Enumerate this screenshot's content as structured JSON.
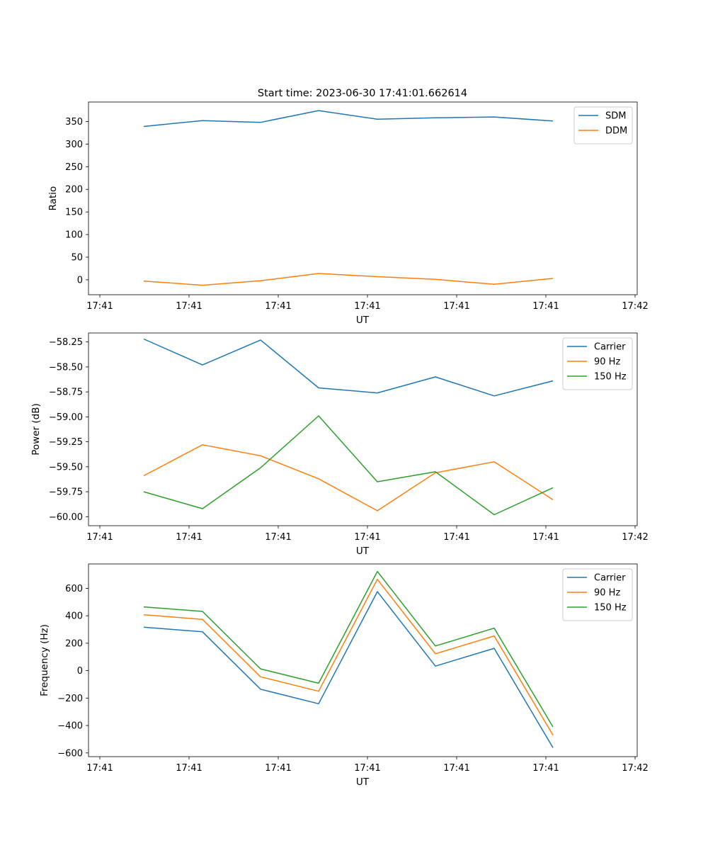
{
  "title": "Start time: 2023-06-30 17:41:01.662614",
  "chart_data": [
    {
      "type": "line",
      "title": "Start time: 2023-06-30 17:41:01.662614",
      "xlabel": "UT",
      "ylabel": "Ratio",
      "x_ticks": [
        "17:41",
        "17:41",
        "17:41",
        "17:41",
        "17:41",
        "17:41",
        "17:42"
      ],
      "y_ticks": [
        0,
        50,
        100,
        150,
        200,
        250,
        300,
        350
      ],
      "ylim": [
        -33,
        393
      ],
      "legend_position": "top-right",
      "grid": false,
      "series": [
        {
          "name": "SDM",
          "color": "#1f77b4",
          "values": [
            339,
            352,
            348,
            374,
            355,
            358,
            360,
            351
          ]
        },
        {
          "name": "DDM",
          "color": "#ff7f0e",
          "values": [
            -3,
            -12,
            -2,
            14,
            7,
            1,
            -10,
            3
          ]
        }
      ]
    },
    {
      "type": "line",
      "title": "",
      "xlabel": "UT",
      "ylabel": "Power (dB)",
      "x_ticks": [
        "17:41",
        "17:41",
        "17:41",
        "17:41",
        "17:41",
        "17:41",
        "17:42"
      ],
      "y_ticks": [
        -60.0,
        -59.75,
        -59.5,
        -59.25,
        -59.0,
        -58.75,
        -58.5,
        -58.25
      ],
      "y_tick_labels": [
        "−60.00",
        "−59.75",
        "−59.50",
        "−59.25",
        "−59.00",
        "−58.75",
        "−58.50",
        "−58.25"
      ],
      "ylim": [
        -60.09,
        -58.16
      ],
      "legend_position": "top-right",
      "grid": false,
      "series": [
        {
          "name": "Carrier",
          "color": "#1f77b4",
          "values": [
            -58.22,
            -58.48,
            -58.23,
            -58.71,
            -58.76,
            -58.6,
            -58.79,
            -58.64
          ]
        },
        {
          "name": "90 Hz",
          "color": "#ff7f0e",
          "values": [
            -59.59,
            -59.28,
            -59.39,
            -59.62,
            -59.94,
            -59.56,
            -59.45,
            -59.83
          ]
        },
        {
          "name": "150 Hz",
          "color": "#2ca02c",
          "values": [
            -59.75,
            -59.92,
            -59.51,
            -58.99,
            -59.65,
            -59.55,
            -59.98,
            -59.71
          ]
        }
      ]
    },
    {
      "type": "line",
      "title": "",
      "xlabel": "UT",
      "ylabel": "Frequency (Hz)",
      "x_ticks": [
        "17:41",
        "17:41",
        "17:41",
        "17:41",
        "17:41",
        "17:41",
        "17:42"
      ],
      "y_ticks": [
        -600,
        -400,
        -200,
        0,
        200,
        400,
        600
      ],
      "y_tick_labels": [
        "−600",
        "−400",
        "−200",
        "0",
        "200",
        "400",
        "600"
      ],
      "ylim": [
        -627,
        778
      ],
      "legend_position": "top-right",
      "grid": false,
      "series": [
        {
          "name": "Carrier",
          "color": "#1f77b4",
          "values": [
            317,
            283,
            -135,
            -241,
            576,
            33,
            163,
            -562
          ]
        },
        {
          "name": "90 Hz",
          "color": "#ff7f0e",
          "values": [
            407,
            374,
            -45,
            -150,
            666,
            123,
            253,
            -470
          ]
        },
        {
          "name": "150 Hz",
          "color": "#2ca02c",
          "values": [
            465,
            432,
            13,
            -92,
            723,
            180,
            310,
            -410
          ]
        }
      ]
    }
  ]
}
